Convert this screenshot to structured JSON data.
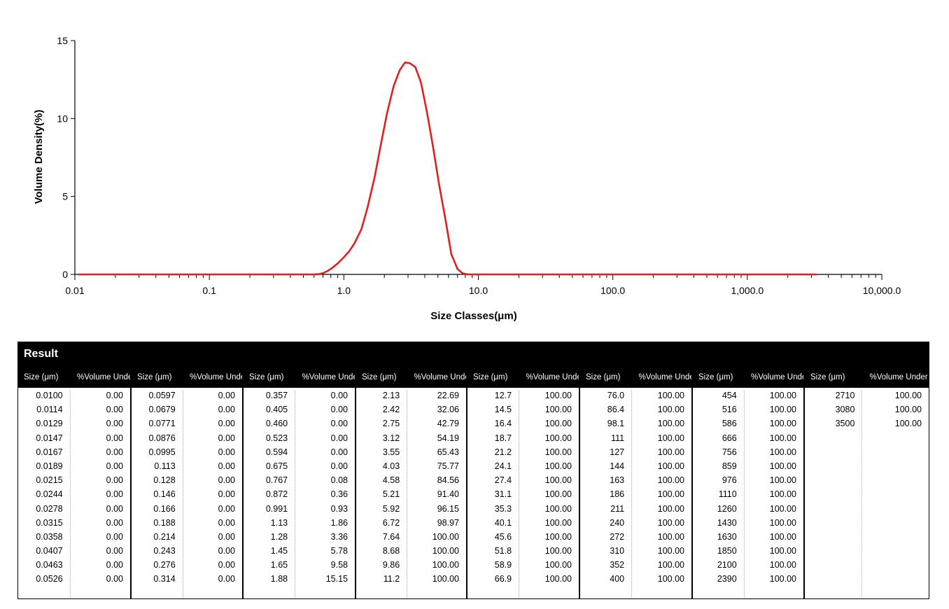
{
  "chart_data": {
    "type": "line",
    "xlabel": "Size Classes(μm)",
    "ylabel": "Volume Density(%)",
    "x_scale": "log",
    "xlim": [
      0.01,
      10000
    ],
    "ylim": [
      0,
      15
    ],
    "x_tick_labels": [
      "0.01",
      "0.1",
      "1.0",
      "10.0",
      "100.0",
      "1,000.0",
      "10,000.0"
    ],
    "x_tick_values": [
      0.01,
      0.1,
      1,
      10,
      100,
      1000,
      10000
    ],
    "y_tick_labels": [
      "0",
      "5",
      "10",
      "15"
    ],
    "y_tick_values": [
      0,
      5,
      10,
      15
    ],
    "grid": false,
    "series": [
      {
        "color": "#e02020",
        "x": [
          0.0107,
          0.6,
          0.65,
          0.7,
          0.75,
          0.8,
          0.9,
          1.0,
          1.1,
          1.2,
          1.35,
          1.5,
          1.7,
          1.9,
          2.1,
          2.35,
          2.6,
          2.85,
          3.1,
          3.4,
          3.75,
          4.15,
          4.6,
          5.1,
          5.7,
          6.3,
          7.0,
          7.6,
          8.2,
          8.7,
          9.5,
          12,
          100,
          1000,
          3250
        ],
        "y": [
          0.0,
          0.0,
          0.02,
          0.08,
          0.2,
          0.35,
          0.7,
          1.1,
          1.5,
          2.0,
          2.9,
          4.3,
          6.3,
          8.5,
          10.4,
          12.1,
          13.1,
          13.6,
          13.55,
          13.3,
          12.3,
          10.4,
          8.2,
          5.8,
          3.5,
          1.3,
          0.35,
          0.08,
          0.01,
          0.0,
          0.0,
          0.0,
          0.0,
          0.0,
          0.0
        ]
      }
    ]
  },
  "result": {
    "title": "Result",
    "size_header": "Size (μm)",
    "volume_header": "%Volume Under",
    "groups": [
      [
        [
          "0.0100",
          "0.00"
        ],
        [
          "0.0114",
          "0.00"
        ],
        [
          "0.0129",
          "0.00"
        ],
        [
          "0.0147",
          "0.00"
        ],
        [
          "0.0167",
          "0.00"
        ],
        [
          "0.0189",
          "0.00"
        ],
        [
          "0.0215",
          "0.00"
        ],
        [
          "0.0244",
          "0.00"
        ],
        [
          "0.0278",
          "0.00"
        ],
        [
          "0.0315",
          "0.00"
        ],
        [
          "0.0358",
          "0.00"
        ],
        [
          "0.0407",
          "0.00"
        ],
        [
          "0.0463",
          "0.00"
        ],
        [
          "0.0526",
          "0.00"
        ]
      ],
      [
        [
          "0.0597",
          "0.00"
        ],
        [
          "0.0679",
          "0.00"
        ],
        [
          "0.0771",
          "0.00"
        ],
        [
          "0.0876",
          "0.00"
        ],
        [
          "0.0995",
          "0.00"
        ],
        [
          "0.113",
          "0.00"
        ],
        [
          "0.128",
          "0.00"
        ],
        [
          "0.146",
          "0.00"
        ],
        [
          "0.166",
          "0.00"
        ],
        [
          "0.188",
          "0.00"
        ],
        [
          "0.214",
          "0.00"
        ],
        [
          "0.243",
          "0.00"
        ],
        [
          "0.276",
          "0.00"
        ],
        [
          "0.314",
          "0.00"
        ]
      ],
      [
        [
          "0.357",
          "0.00"
        ],
        [
          "0.405",
          "0.00"
        ],
        [
          "0.460",
          "0.00"
        ],
        [
          "0.523",
          "0.00"
        ],
        [
          "0.594",
          "0.00"
        ],
        [
          "0.675",
          "0.00"
        ],
        [
          "0.767",
          "0.08"
        ],
        [
          "0.872",
          "0.36"
        ],
        [
          "0.991",
          "0.93"
        ],
        [
          "1.13",
          "1.86"
        ],
        [
          "1.28",
          "3.36"
        ],
        [
          "1.45",
          "5.78"
        ],
        [
          "1.65",
          "9.58"
        ],
        [
          "1.88",
          "15.15"
        ]
      ],
      [
        [
          "2.13",
          "22.69"
        ],
        [
          "2.42",
          "32.06"
        ],
        [
          "2.75",
          "42.79"
        ],
        [
          "3.12",
          "54.19"
        ],
        [
          "3.55",
          "65.43"
        ],
        [
          "4.03",
          "75.77"
        ],
        [
          "4.58",
          "84.56"
        ],
        [
          "5.21",
          "91.40"
        ],
        [
          "5.92",
          "96.15"
        ],
        [
          "6.72",
          "98.97"
        ],
        [
          "7.64",
          "100.00"
        ],
        [
          "8.68",
          "100.00"
        ],
        [
          "9.86",
          "100.00"
        ],
        [
          "11.2",
          "100.00"
        ]
      ],
      [
        [
          "12.7",
          "100.00"
        ],
        [
          "14.5",
          "100.00"
        ],
        [
          "16.4",
          "100.00"
        ],
        [
          "18.7",
          "100.00"
        ],
        [
          "21.2",
          "100.00"
        ],
        [
          "24.1",
          "100.00"
        ],
        [
          "27.4",
          "100.00"
        ],
        [
          "31.1",
          "100.00"
        ],
        [
          "35.3",
          "100.00"
        ],
        [
          "40.1",
          "100.00"
        ],
        [
          "45.6",
          "100.00"
        ],
        [
          "51.8",
          "100.00"
        ],
        [
          "58.9",
          "100.00"
        ],
        [
          "66.9",
          "100.00"
        ]
      ],
      [
        [
          "76.0",
          "100.00"
        ],
        [
          "86.4",
          "100.00"
        ],
        [
          "98.1",
          "100.00"
        ],
        [
          "111",
          "100.00"
        ],
        [
          "127",
          "100.00"
        ],
        [
          "144",
          "100.00"
        ],
        [
          "163",
          "100.00"
        ],
        [
          "186",
          "100.00"
        ],
        [
          "211",
          "100.00"
        ],
        [
          "240",
          "100.00"
        ],
        [
          "272",
          "100.00"
        ],
        [
          "310",
          "100.00"
        ],
        [
          "352",
          "100.00"
        ],
        [
          "400",
          "100.00"
        ]
      ],
      [
        [
          "454",
          "100.00"
        ],
        [
          "516",
          "100.00"
        ],
        [
          "586",
          "100.00"
        ],
        [
          "666",
          "100.00"
        ],
        [
          "756",
          "100.00"
        ],
        [
          "859",
          "100.00"
        ],
        [
          "976",
          "100.00"
        ],
        [
          "1110",
          "100.00"
        ],
        [
          "1260",
          "100.00"
        ],
        [
          "1430",
          "100.00"
        ],
        [
          "1630",
          "100.00"
        ],
        [
          "1850",
          "100.00"
        ],
        [
          "2100",
          "100.00"
        ],
        [
          "2390",
          "100.00"
        ]
      ],
      [
        [
          "2710",
          "100.00"
        ],
        [
          "3080",
          "100.00"
        ],
        [
          "3500",
          "100.00"
        ]
      ]
    ]
  }
}
